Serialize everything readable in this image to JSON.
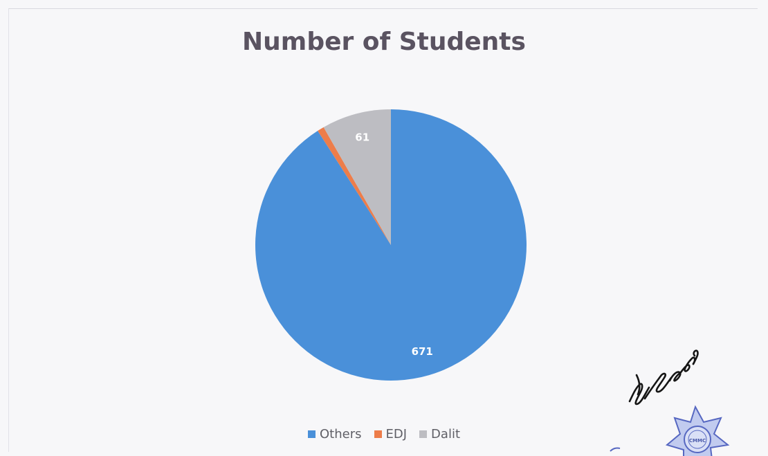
{
  "chart_data": {
    "type": "pie",
    "title": "Number of Students",
    "categories": [
      "Others",
      "EDJ",
      "Dalit"
    ],
    "values": [
      671,
      6,
      61
    ],
    "data_labels": [
      "671",
      "",
      "61"
    ],
    "colors": [
      "#4a90d9",
      "#ed7d4a",
      "#bdbdc2"
    ],
    "legend_position": "bottom"
  },
  "stamp": {
    "emblem_text": "CMMC"
  }
}
